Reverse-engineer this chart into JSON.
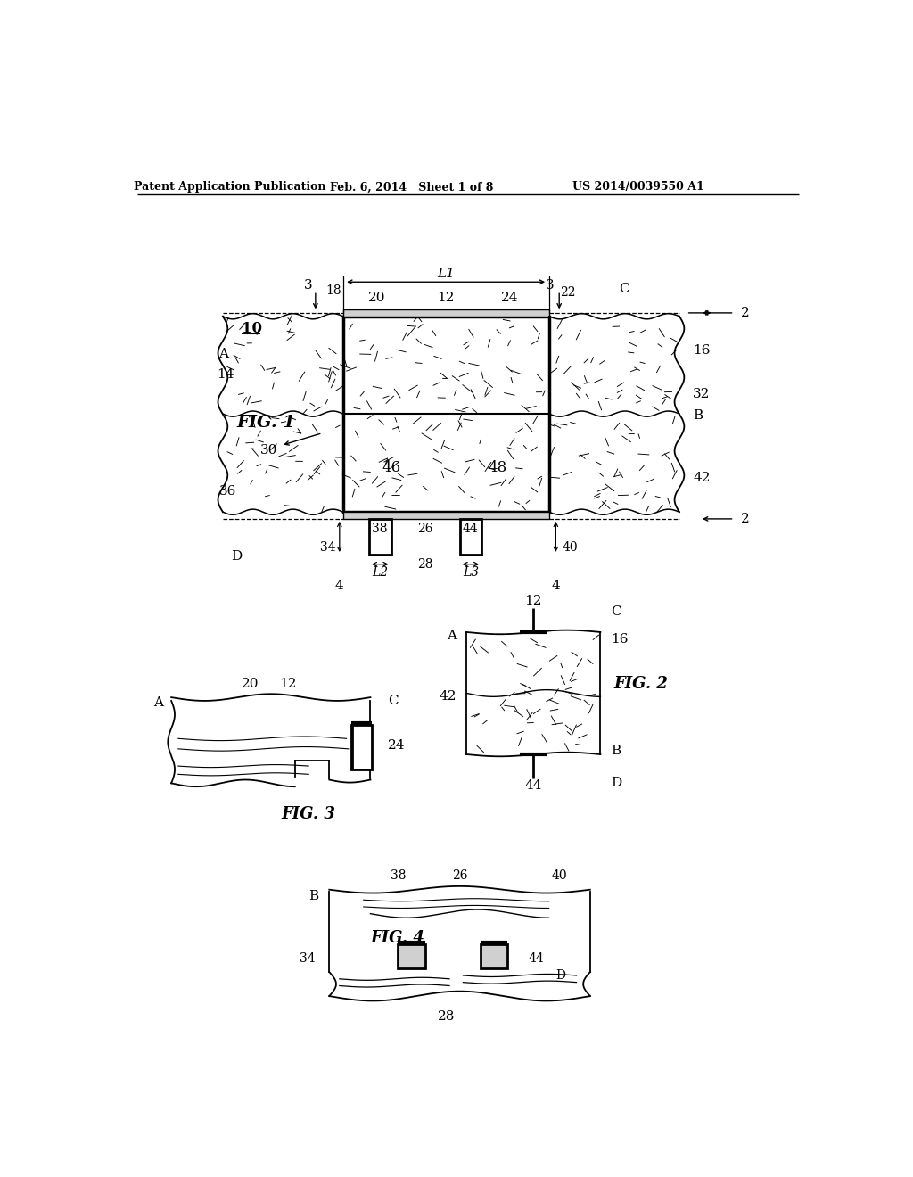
{
  "bg_color": "#ffffff",
  "header_left": "Patent Application Publication",
  "header_mid": "Feb. 6, 2014   Sheet 1 of 8",
  "header_right": "US 2014/0039550 A1"
}
